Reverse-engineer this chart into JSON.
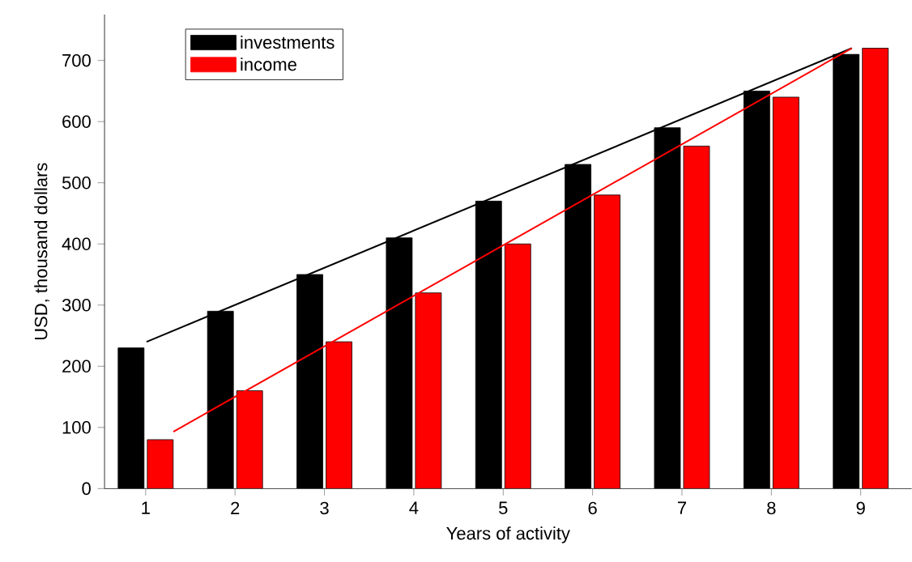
{
  "chart_data": {
    "type": "bar",
    "xlabel": "Years of activity",
    "ylabel": "USD, thousand dollars",
    "x": [
      1,
      2,
      3,
      4,
      5,
      6,
      7,
      8,
      9
    ],
    "series": [
      {
        "name": "investments",
        "color": "#000000",
        "values": [
          230,
          290,
          350,
          410,
          470,
          530,
          590,
          650,
          710
        ]
      },
      {
        "name": "income",
        "color": "#ff0000",
        "values": [
          80,
          160,
          240,
          320,
          400,
          480,
          560,
          640,
          720
        ]
      },
      {
        "type": "line",
        "color": "#000000",
        "x": [
          1.01,
          8.9
        ],
        "values": [
          240,
          720
        ]
      },
      {
        "type": "line",
        "color": "#ff0000",
        "x": [
          1.31,
          8.9
        ],
        "values": [
          93,
          720
        ]
      }
    ],
    "xlim": [
      0.54,
      9.57
    ],
    "ylim": [
      0,
      775
    ],
    "xticks": [
      1,
      2,
      3,
      4,
      5,
      6,
      7,
      8,
      9
    ],
    "yticks": [
      0,
      100,
      200,
      300,
      400,
      500,
      600,
      700
    ],
    "grid": false,
    "legend": "top left",
    "marker": "none",
    "line_style": "solid"
  }
}
